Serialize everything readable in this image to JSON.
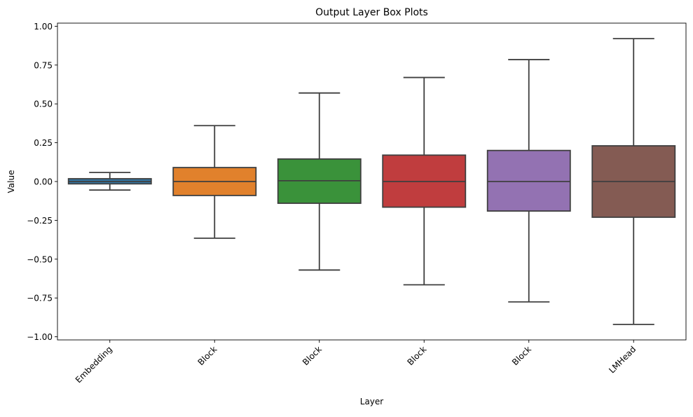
{
  "chart_data": {
    "type": "box",
    "title": "Output Layer Box Plots",
    "xlabel": "Layer",
    "ylabel": "Value",
    "ylim": [
      -1.02,
      1.02
    ],
    "yticks": [
      -1.0,
      -0.75,
      -0.5,
      -0.25,
      0.0,
      0.25,
      0.5,
      0.75,
      1.0
    ],
    "ytick_labels": [
      "−1.00",
      "−0.75",
      "−0.50",
      "−0.25",
      "0.00",
      "0.25",
      "0.50",
      "0.75",
      "1.00"
    ],
    "grid": false,
    "categories": [
      "Embedding",
      "Block",
      "Block",
      "Block",
      "Block",
      "LMHead"
    ],
    "boxes": [
      {
        "whisker_low": -0.055,
        "q1": -0.015,
        "median": 0.0,
        "q3": 0.018,
        "whisker_high": 0.058,
        "color": "#3274a1"
      },
      {
        "whisker_low": -0.365,
        "q1": -0.09,
        "median": 0.0,
        "q3": 0.09,
        "whisker_high": 0.36,
        "color": "#e1812c"
      },
      {
        "whisker_low": -0.57,
        "q1": -0.14,
        "median": 0.005,
        "q3": 0.145,
        "whisker_high": 0.57,
        "color": "#3a923a"
      },
      {
        "whisker_low": -0.665,
        "q1": -0.165,
        "median": 0.0,
        "q3": 0.17,
        "whisker_high": 0.67,
        "color": "#c03d3e"
      },
      {
        "whisker_low": -0.775,
        "q1": -0.19,
        "median": 0.0,
        "q3": 0.2,
        "whisker_high": 0.785,
        "color": "#9372b2"
      },
      {
        "whisker_low": -0.92,
        "q1": -0.23,
        "median": 0.0,
        "q3": 0.23,
        "whisker_high": 0.92,
        "color": "#845b53"
      }
    ]
  }
}
